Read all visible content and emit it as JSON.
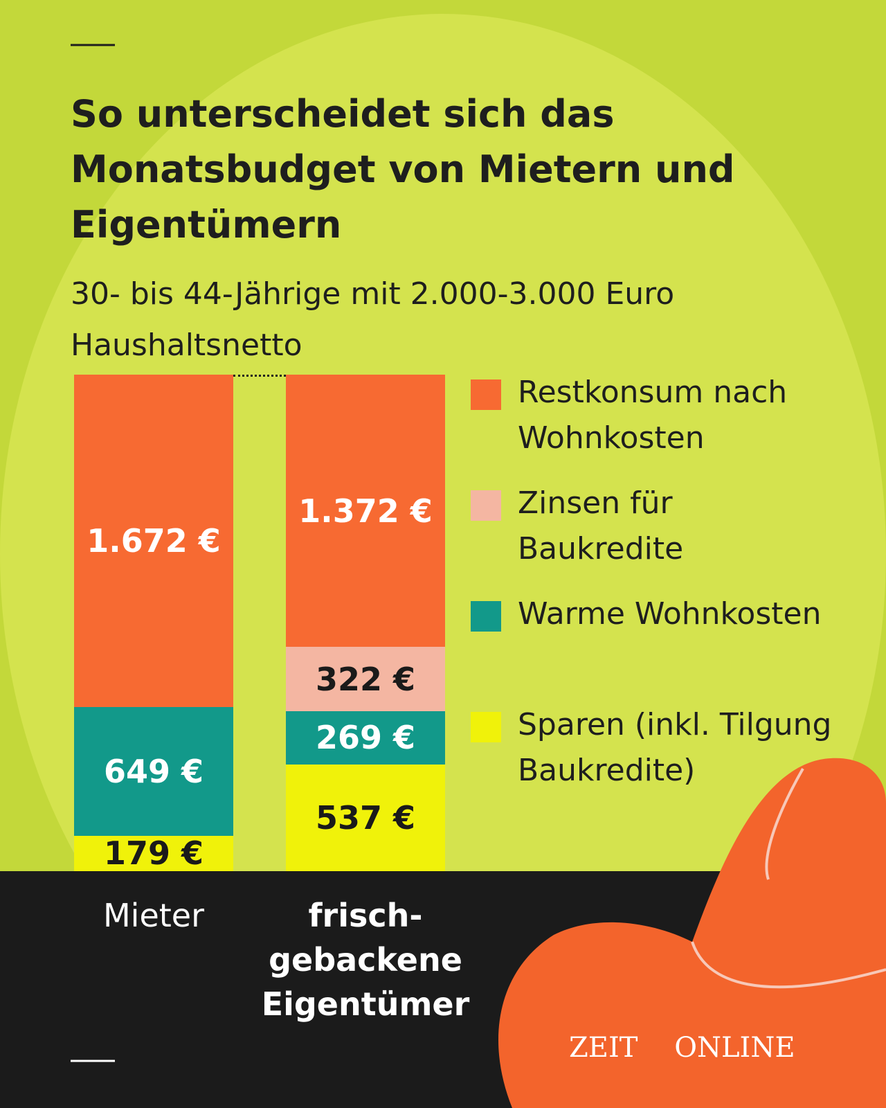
{
  "chart_data": {
    "type": "stacked-bar",
    "title": "So unterscheidet sich das Monatsbudget von Mietern und Eigentümern",
    "subtitle": "30- bis 44-Jährige mit 2.000-3.000 Euro Haushaltsnetto",
    "categories": [
      "Mieter",
      "frisch-gebackene Eigentümer"
    ],
    "series": [
      {
        "name": "Restkonsum nach Wohnkosten",
        "color": "#f76a32",
        "label_color": "#ffffff",
        "values": [
          1672,
          1372
        ],
        "value_labels": [
          "1.672 €",
          "1.372 €"
        ]
      },
      {
        "name": "Zinsen für Baukredite",
        "color": "#f4b6a2",
        "label_color": "#1a1a1a",
        "values": [
          null,
          322
        ],
        "value_labels": [
          null,
          "322 €"
        ]
      },
      {
        "name": "Warme Wohnkosten",
        "color": "#12998a",
        "label_color": "#ffffff",
        "values": [
          649,
          269
        ],
        "value_labels": [
          "649 €",
          "269 €"
        ]
      },
      {
        "name": "Sparen (inkl. Tilgung Baukredite)",
        "color": "#f0f20a",
        "label_color": "#1a1a1a",
        "values": [
          179,
          537
        ],
        "value_labels": [
          "179 €",
          "537 €"
        ]
      }
    ],
    "logo": "ZEIT ONLINE"
  }
}
